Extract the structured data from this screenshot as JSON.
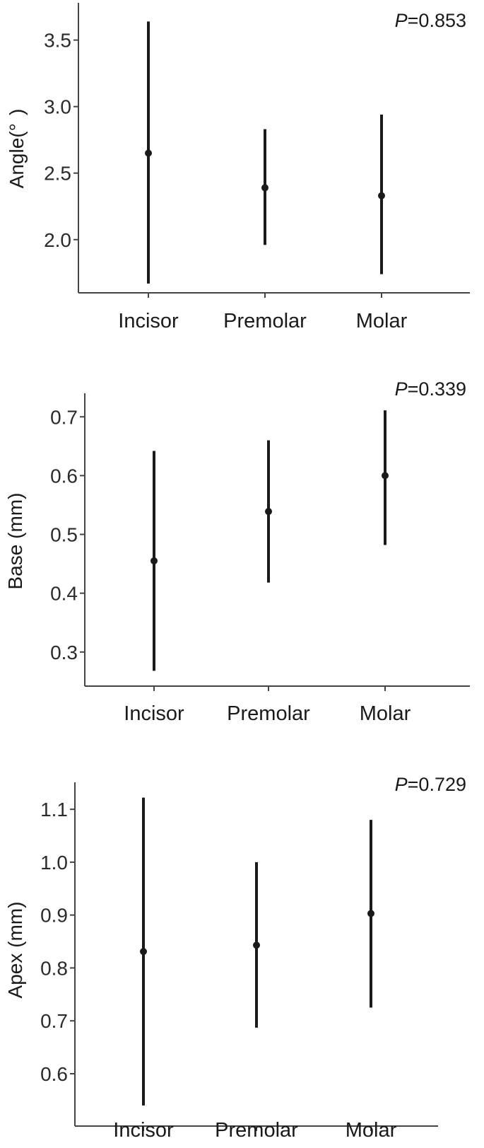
{
  "chart_data": [
    {
      "type": "errorbar",
      "categories": [
        "Incisor",
        "Premolar",
        "Molar"
      ],
      "ylabel": "Angle(°  )",
      "annotation": {
        "italic": "P",
        "text": "=0.853"
      },
      "yticks": [
        2.0,
        2.5,
        3.0,
        3.5
      ],
      "tick_labels": [
        "2.0",
        "2.5",
        "3.0",
        "3.5"
      ],
      "ylim": [
        1.6,
        3.78
      ],
      "series": [
        {
          "mean": 2.65,
          "lower": 1.67,
          "upper": 3.64
        },
        {
          "mean": 2.39,
          "lower": 1.96,
          "upper": 2.83
        },
        {
          "mean": 2.33,
          "lower": 1.74,
          "upper": 2.94
        }
      ]
    },
    {
      "type": "errorbar",
      "categories": [
        "Incisor",
        "Premolar",
        "Molar"
      ],
      "ylabel": "Base (mm)",
      "annotation": {
        "italic": "P",
        "text": "=0.339"
      },
      "yticks": [
        0.3,
        0.4,
        0.5,
        0.6,
        0.7
      ],
      "tick_labels": [
        "0.3",
        "0.4",
        "0.5",
        "0.6",
        "0.7"
      ],
      "ylim": [
        0.242,
        0.74
      ],
      "series": [
        {
          "mean": 0.455,
          "lower": 0.268,
          "upper": 0.642
        },
        {
          "mean": 0.539,
          "lower": 0.418,
          "upper": 0.66
        },
        {
          "mean": 0.6,
          "lower": 0.482,
          "upper": 0.711
        }
      ]
    },
    {
      "type": "errorbar",
      "categories": [
        "Incisor",
        "Premolar",
        "Molar"
      ],
      "ylabel": "Apex (mm)",
      "annotation": {
        "italic": "P",
        "text": "=0.729"
      },
      "yticks": [
        0.6,
        0.7,
        0.8,
        0.9,
        1.0,
        1.1
      ],
      "tick_labels": [
        "0.6",
        "0.7",
        "0.8",
        "0.9",
        "1.0",
        "1.1"
      ],
      "ylim": [
        0.501,
        1.151
      ],
      "series": [
        {
          "mean": 0.831,
          "lower": 0.54,
          "upper": 1.122
        },
        {
          "mean": 0.843,
          "lower": 0.687,
          "upper": 1.0
        },
        {
          "mean": 0.903,
          "lower": 0.725,
          "upper": 1.08
        }
      ]
    }
  ]
}
